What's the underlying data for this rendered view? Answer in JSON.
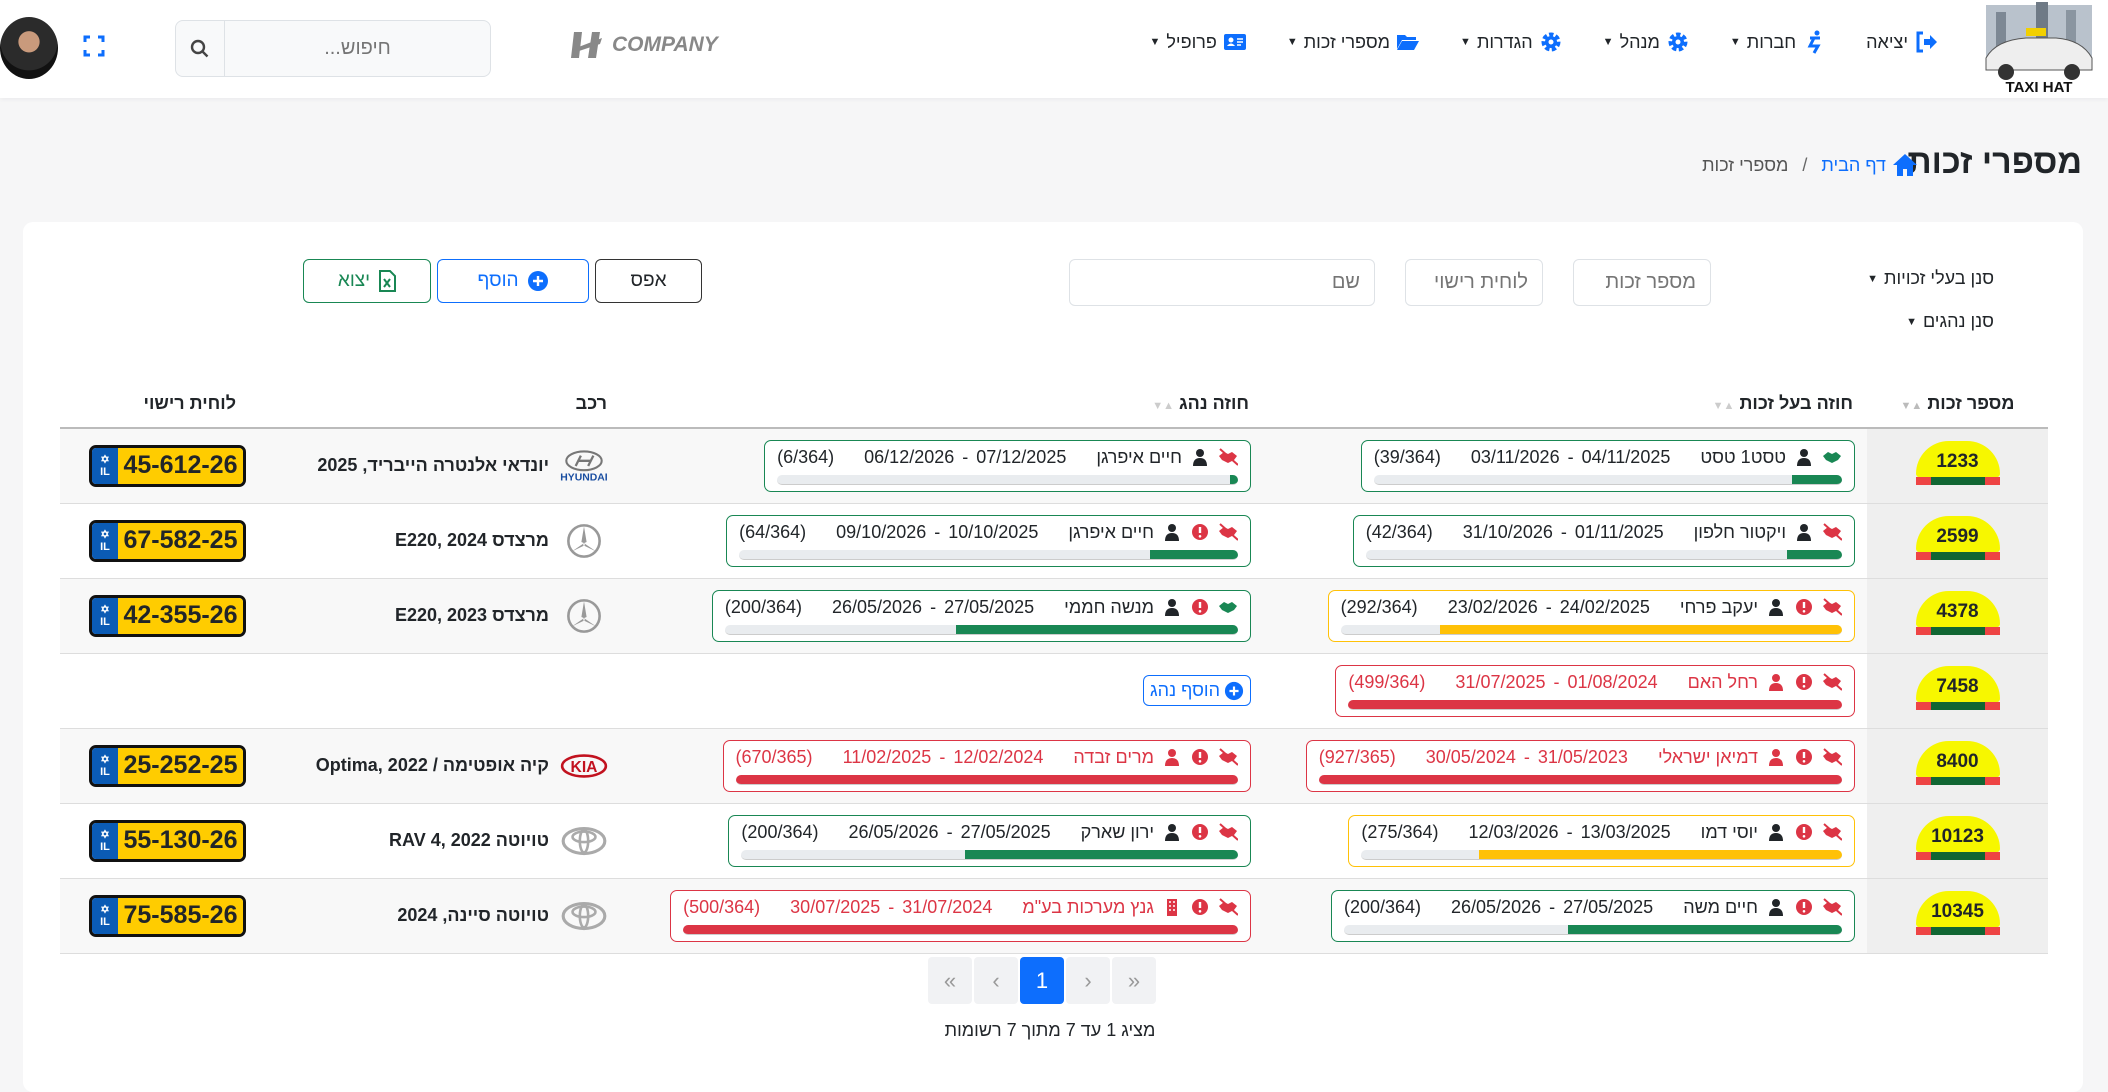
{
  "header": {
    "search_placeholder": "חיפוש...",
    "company": "COMPANY",
    "logo_text": "TAXI HAT",
    "nav": [
      {
        "label": "פרופיל",
        "icon": "id-card-icon",
        "caret": true
      },
      {
        "label": "מספרי זכות",
        "icon": "folder-open-icon",
        "caret": true
      },
      {
        "label": "הגדרות",
        "icon": "gear-icon",
        "caret": true
      },
      {
        "label": "מנהל",
        "icon": "gear-icon",
        "caret": true
      },
      {
        "label": "חברות",
        "icon": "person-booth-icon",
        "caret": true
      },
      {
        "label": "יציאה",
        "icon": "sign-out-icon",
        "caret": false
      }
    ]
  },
  "page": {
    "title": "מספרי זכות",
    "breadcrumb_home": "דף הבית",
    "breadcrumb_current": "מספרי זכות",
    "breadcrumb_sep": "/"
  },
  "filters": {
    "owners_filter": "סנן בעלי זכויות",
    "drivers_filter": "סנן נהגים",
    "license_placeholder": "מספר זכות",
    "plate_placeholder": "לוחית רישוי",
    "name_placeholder": "שם",
    "reset": "אפס",
    "add": "הוסף",
    "export": "יצוא"
  },
  "table": {
    "headers": {
      "number": "מספר זכות",
      "owner": "חוזה בעל זכות",
      "driver": "חוזה נהג",
      "vehicle": "רכב",
      "plate": "לוחית רישוי"
    },
    "add_driver": "הוסף נהג",
    "rows": [
      {
        "number": "1233",
        "owner": {
          "name": "טסט1 טסט",
          "start": "04/11/2025",
          "end": "03/11/2026",
          "days": 39,
          "total": 364,
          "counter": "(39/364)",
          "status": "green",
          "signed": true,
          "warning": false,
          "type": "person"
        },
        "driver": {
          "name": "חיים איפרגן",
          "start": "07/12/2025",
          "end": "06/12/2026",
          "days": 6,
          "total": 364,
          "counter": "(6/364)",
          "status": "green",
          "signed": false,
          "warning": false,
          "type": "person"
        },
        "vehicle": {
          "brand": "hyundai",
          "name": "יונדאי אלנטרה הייבריד, 2025"
        },
        "plate": "45-612-26"
      },
      {
        "number": "2599",
        "owner": {
          "name": "ויקטור חלפון",
          "start": "01/11/2025",
          "end": "31/10/2026",
          "days": 42,
          "total": 364,
          "counter": "(42/364)",
          "status": "green",
          "signed": false,
          "warning": false,
          "type": "person"
        },
        "driver": {
          "name": "חיים איפרגן",
          "start": "10/10/2025",
          "end": "09/10/2026",
          "days": 64,
          "total": 364,
          "counter": "(64/364)",
          "status": "green",
          "signed": false,
          "warning": true,
          "type": "person"
        },
        "vehicle": {
          "brand": "mercedes",
          "name": "מרצדס E220, 2024"
        },
        "plate": "67-582-25"
      },
      {
        "number": "4378",
        "owner": {
          "name": "יעקב פרחי",
          "start": "24/02/2025",
          "end": "23/02/2026",
          "days": 292,
          "total": 364,
          "counter": "(292/364)",
          "status": "yellow",
          "signed": false,
          "warning": true,
          "type": "person"
        },
        "driver": {
          "name": "מנשה חממי",
          "start": "27/05/2025",
          "end": "26/05/2026",
          "days": 200,
          "total": 364,
          "counter": "(200/364)",
          "status": "green",
          "signed": true,
          "warning": true,
          "type": "person"
        },
        "vehicle": {
          "brand": "mercedes",
          "name": "מרצדס E220, 2023"
        },
        "plate": "42-355-26"
      },
      {
        "number": "7458",
        "owner": {
          "name": "רחל האם",
          "start": "01/08/2024",
          "end": "31/07/2025",
          "days": 499,
          "total": 364,
          "counter": "(499/364)",
          "status": "red",
          "signed": false,
          "warning": true,
          "type": "person"
        },
        "driver": null,
        "vehicle": null,
        "plate": null
      },
      {
        "number": "8400",
        "owner": {
          "name": "דמיאן ישראלי",
          "start": "31/05/2023",
          "end": "30/05/2024",
          "days": 927,
          "total": 365,
          "counter": "(927/365)",
          "status": "red",
          "signed": false,
          "warning": true,
          "type": "person"
        },
        "driver": {
          "name": "מרים זבדה",
          "start": "12/02/2024",
          "end": "11/02/2025",
          "days": 670,
          "total": 365,
          "counter": "(670/365)",
          "status": "red",
          "signed": false,
          "warning": true,
          "type": "person"
        },
        "vehicle": {
          "brand": "kia",
          "name": "קיה אופטימה / Optima, 2022"
        },
        "plate": "25-252-25"
      },
      {
        "number": "10123",
        "owner": {
          "name": "יוסי דמו",
          "start": "13/03/2025",
          "end": "12/03/2026",
          "days": 275,
          "total": 364,
          "counter": "(275/364)",
          "status": "yellow",
          "signed": false,
          "warning": true,
          "type": "person"
        },
        "driver": {
          "name": "ירון שארק",
          "start": "27/05/2025",
          "end": "26/05/2026",
          "days": 200,
          "total": 364,
          "counter": "(200/364)",
          "status": "green",
          "signed": false,
          "warning": true,
          "type": "person"
        },
        "vehicle": {
          "brand": "toyota",
          "name": "טויוטה RAV 4, 2022"
        },
        "plate": "55-130-26"
      },
      {
        "number": "10345",
        "owner": {
          "name": "חיים משה",
          "start": "27/05/2025",
          "end": "26/05/2026",
          "days": 200,
          "total": 364,
          "counter": "(200/364)",
          "status": "green",
          "signed": false,
          "warning": true,
          "type": "person"
        },
        "driver": {
          "name": "גנץ מערכות בע\"מ",
          "start": "31/07/2024",
          "end": "30/07/2025",
          "days": 500,
          "total": 364,
          "counter": "(500/364)",
          "status": "red",
          "signed": false,
          "warning": true,
          "type": "company"
        },
        "vehicle": {
          "brand": "toyota",
          "name": "טויוטה סיינה, 2024"
        },
        "plate": "75-585-26"
      }
    ]
  },
  "pagination": {
    "current": "1",
    "first": "«",
    "prev": "‹",
    "next": "›",
    "last": "»",
    "info": "מציג 1 עד 7 מתוך 7 רשומות"
  },
  "colors": {
    "green": "#198754",
    "yellow": "#ffc107",
    "red": "#dc3545",
    "blue": "#0d6efd"
  }
}
